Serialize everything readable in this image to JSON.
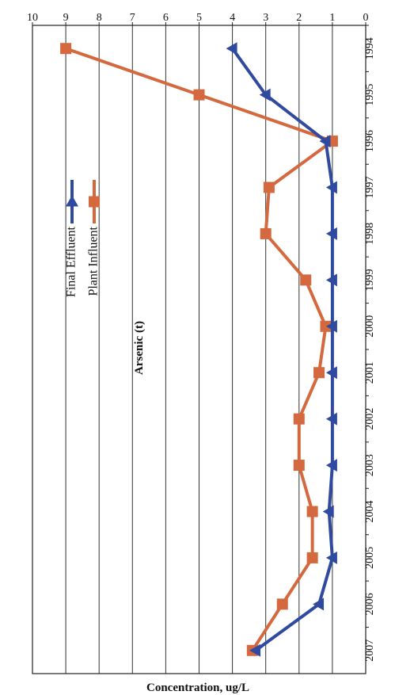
{
  "chart_data": {
    "type": "line",
    "title": "Arsenic (t)",
    "xlabel": "",
    "ylabel": "Concentration, ug/L",
    "categories": [
      "1994",
      "1995",
      "1996",
      "1997",
      "1998",
      "1999",
      "2000",
      "2001",
      "2002",
      "2003",
      "2004",
      "2005",
      "2006",
      "2007"
    ],
    "ylim": [
      0,
      10
    ],
    "yticks": [
      "0",
      "1",
      "2",
      "3",
      "4",
      "5",
      "6",
      "7",
      "8",
      "9",
      "10"
    ],
    "grid": true,
    "legend_position": "top-right",
    "series": [
      {
        "name": "Plant Influent",
        "color": "#d4693f",
        "marker": "square",
        "values": [
          9.0,
          5.0,
          1.0,
          2.9,
          3.0,
          1.8,
          1.2,
          1.4,
          2.0,
          2.0,
          1.6,
          1.6,
          2.5,
          3.4
        ]
      },
      {
        "name": "Final Effluent",
        "color": "#2f4a9e",
        "marker": "triangle",
        "values": [
          4.0,
          3.0,
          1.2,
          1.0,
          1.0,
          1.0,
          1.0,
          1.0,
          1.0,
          1.0,
          1.1,
          1.0,
          1.4,
          3.3
        ]
      }
    ]
  }
}
